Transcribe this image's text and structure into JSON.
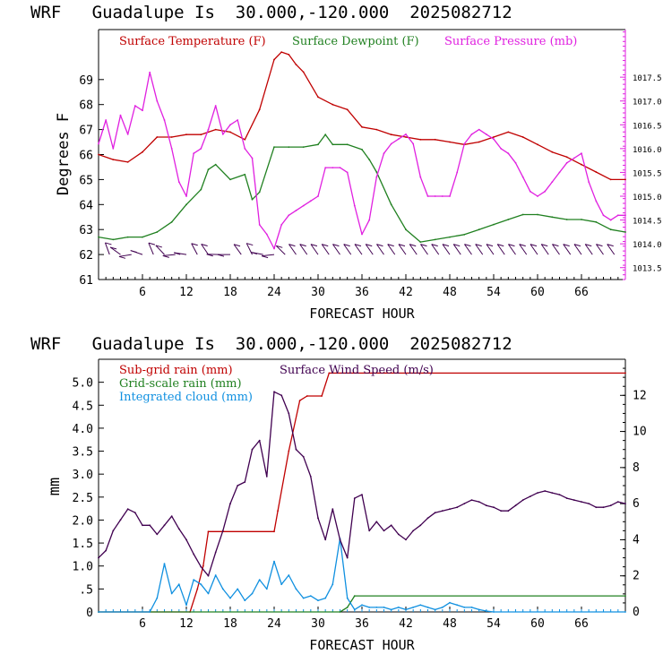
{
  "top_title": "WRF   Guadalupe Is  30.000,-120.000  2025082712",
  "bottom_title": "WRF   Guadalupe Is  30.000,-120.000  2025082712",
  "chart_data": [
    {
      "type": "line",
      "xlabel": "FORECAST HOUR",
      "ylabel": "Degrees F",
      "xlim": [
        0,
        72
      ],
      "ylim": [
        61,
        71
      ],
      "y2lim": [
        1013.25,
        1018.5
      ],
      "x_ticks": [
        "6",
        "12",
        "18",
        "24",
        "30",
        "36",
        "42",
        "48",
        "54",
        "60",
        "66"
      ],
      "y_ticks": [
        "61",
        "62",
        "63",
        "64",
        "65",
        "66",
        "67",
        "68",
        "69"
      ],
      "y2_ticks": [
        "1013.5",
        "1014.0",
        "1014.5",
        "1015.0",
        "1015.5",
        "1016.0",
        "1016.5",
        "1017.0",
        "1017.5"
      ],
      "legend_placement": "top",
      "wind_barbs": "row of wind barbs at 62°F level along the x axis",
      "series": [
        {
          "name": "Surface Temperature (F)",
          "color": "#c00000",
          "axis": "left",
          "x": [
            0,
            2,
            4,
            6,
            8,
            10,
            12,
            14,
            16,
            18,
            20,
            22,
            24,
            25,
            26,
            27,
            28,
            30,
            32,
            34,
            36,
            38,
            40,
            42,
            44,
            46,
            48,
            50,
            52,
            54,
            56,
            58,
            60,
            62,
            64,
            66,
            68,
            70,
            72
          ],
          "y": [
            66.0,
            65.8,
            65.7,
            66.1,
            66.7,
            66.7,
            66.8,
            66.8,
            67.0,
            66.9,
            66.6,
            67.8,
            69.8,
            70.1,
            70.0,
            69.6,
            69.3,
            68.3,
            68.0,
            67.8,
            67.1,
            67.0,
            66.8,
            66.7,
            66.6,
            66.6,
            66.5,
            66.4,
            66.5,
            66.7,
            66.9,
            66.7,
            66.4,
            66.1,
            65.9,
            65.6,
            65.3,
            65.0,
            65.0
          ]
        },
        {
          "name": "Surface Dewpoint (F)",
          "color": "#208020",
          "axis": "left",
          "x": [
            0,
            2,
            4,
            6,
            8,
            10,
            12,
            14,
            15,
            16,
            18,
            20,
            21,
            22,
            24,
            26,
            28,
            30,
            31,
            32,
            34,
            36,
            37,
            38,
            40,
            42,
            44,
            46,
            48,
            50,
            52,
            54,
            56,
            58,
            60,
            62,
            64,
            66,
            68,
            70,
            72
          ],
          "y": [
            62.7,
            62.6,
            62.7,
            62.7,
            62.9,
            63.3,
            64.0,
            64.6,
            65.4,
            65.6,
            65.0,
            65.2,
            64.2,
            64.5,
            66.3,
            66.3,
            66.3,
            66.4,
            66.8,
            66.4,
            66.4,
            66.2,
            65.8,
            65.3,
            64.0,
            63.0,
            62.5,
            62.6,
            62.7,
            62.8,
            63.0,
            63.2,
            63.4,
            63.6,
            63.6,
            63.5,
            63.4,
            63.4,
            63.3,
            63.0,
            62.9
          ]
        },
        {
          "name": "Surface Pressure (mb)",
          "color": "#e020e0",
          "axis": "right",
          "x": [
            0,
            1,
            2,
            3,
            4,
            5,
            6,
            7,
            8,
            9,
            10,
            11,
            12,
            13,
            14,
            15,
            16,
            17,
            18,
            19,
            20,
            21,
            22,
            23,
            24,
            25,
            26,
            27,
            28,
            29,
            30,
            31,
            32,
            33,
            34,
            35,
            36,
            37,
            38,
            39,
            40,
            41,
            42,
            43,
            44,
            45,
            46,
            47,
            48,
            49,
            50,
            51,
            52,
            53,
            54,
            55,
            56,
            57,
            58,
            59,
            60,
            61,
            62,
            63,
            64,
            65,
            66,
            67,
            68,
            69,
            70,
            71,
            72
          ],
          "y": [
            1016.1,
            1016.6,
            1016.0,
            1016.7,
            1016.3,
            1016.9,
            1016.8,
            1017.6,
            1017.0,
            1016.6,
            1016.0,
            1015.3,
            1015.0,
            1015.9,
            1016.0,
            1016.4,
            1016.9,
            1016.3,
            1016.5,
            1016.6,
            1016.0,
            1015.8,
            1014.4,
            1014.2,
            1013.9,
            1014.4,
            1014.6,
            1014.7,
            1014.8,
            1014.9,
            1015.0,
            1015.6,
            1015.6,
            1015.6,
            1015.5,
            1014.8,
            1014.2,
            1014.5,
            1015.4,
            1015.9,
            1016.1,
            1016.2,
            1016.3,
            1016.1,
            1015.4,
            1015.0,
            1015.0,
            1015.0,
            1015.0,
            1015.5,
            1016.1,
            1016.3,
            1016.4,
            1016.3,
            1016.2,
            1016.0,
            1015.9,
            1015.7,
            1015.4,
            1015.1,
            1015.0,
            1015.1,
            1015.3,
            1015.5,
            1015.7,
            1015.8,
            1015.9,
            1015.3,
            1014.9,
            1014.6,
            1014.5,
            1014.6,
            1014.6
          ]
        }
      ]
    },
    {
      "type": "line",
      "xlabel": "FORECAST HOUR",
      "ylabel": "mm",
      "xlim": [
        0,
        72
      ],
      "ylim": [
        0,
        5.5
      ],
      "y2lim": [
        0,
        14
      ],
      "x_ticks": [
        "6",
        "12",
        "18",
        "24",
        "30",
        "36",
        "42",
        "48",
        "54",
        "60",
        "66"
      ],
      "y_ticks": [
        "0",
        ".5",
        "1.0",
        "1.5",
        "2.0",
        "2.5",
        "3.0",
        "3.5",
        "4.0",
        "4.5",
        "5.0"
      ],
      "y2_ticks": [
        "0",
        "2",
        "4",
        "6",
        "8",
        "10",
        "12"
      ],
      "legend_placement": "top-left",
      "series": [
        {
          "name": "Sub-grid rain (mm)",
          "color": "#c00000",
          "axis": "left",
          "x": [
            0,
            12.5,
            13.5,
            14.3,
            15.0,
            24.0,
            24.5,
            26,
            27.5,
            28.5,
            30.5,
            31.5,
            72
          ],
          "y": [
            0,
            0,
            0.5,
            1.0,
            1.75,
            1.75,
            2.2,
            3.5,
            4.6,
            4.7,
            4.7,
            5.2,
            5.2
          ]
        },
        {
          "name": "Grid-scale rain (mm)",
          "color": "#208020",
          "axis": "left",
          "x": [
            0,
            33,
            34,
            35,
            72
          ],
          "y": [
            0,
            0,
            0.1,
            0.35,
            0.35
          ]
        },
        {
          "name": "Integrated cloud (mm)",
          "color": "#1090e0",
          "axis": "left",
          "x": [
            0,
            7,
            8,
            9,
            10,
            11,
            12,
            13,
            14,
            15,
            16,
            17,
            18,
            19,
            20,
            21,
            22,
            23,
            24,
            25,
            26,
            27,
            28,
            29,
            30,
            31,
            32,
            33,
            34,
            35,
            36,
            37,
            38,
            39,
            40,
            41,
            42,
            43,
            44,
            45,
            46,
            47,
            48,
            49,
            50,
            51,
            52,
            53,
            54,
            72
          ],
          "y": [
            0,
            0,
            0.3,
            1.05,
            0.4,
            0.6,
            0.15,
            0.7,
            0.6,
            0.4,
            0.8,
            0.5,
            0.3,
            0.5,
            0.25,
            0.4,
            0.7,
            0.5,
            1.1,
            0.6,
            0.8,
            0.5,
            0.3,
            0.35,
            0.25,
            0.3,
            0.6,
            1.6,
            0.3,
            0.05,
            0.15,
            0.1,
            0.1,
            0.1,
            0.05,
            0.1,
            0.05,
            0.1,
            0.15,
            0.1,
            0.05,
            0.1,
            0.2,
            0.15,
            0.1,
            0.1,
            0.05,
            0.02,
            0,
            0
          ]
        },
        {
          "name": "Surface Wind Speed (m/s)",
          "color": "#400050",
          "axis": "right",
          "x": [
            0,
            1,
            2,
            3,
            4,
            5,
            6,
            7,
            8,
            9,
            10,
            11,
            12,
            13,
            14,
            15,
            16,
            17,
            18,
            19,
            20,
            21,
            22,
            23,
            24,
            25,
            26,
            27,
            28,
            29,
            30,
            31,
            32,
            33,
            34,
            35,
            36,
            37,
            38,
            39,
            40,
            41,
            42,
            43,
            44,
            45,
            46,
            47,
            48,
            49,
            50,
            51,
            52,
            53,
            54,
            55,
            56,
            57,
            58,
            59,
            60,
            61,
            62,
            63,
            64,
            65,
            66,
            67,
            68,
            69,
            70,
            71,
            72
          ],
          "y": [
            3.0,
            3.4,
            4.5,
            5.1,
            5.7,
            5.5,
            4.8,
            4.8,
            4.3,
            4.8,
            5.3,
            4.6,
            4.0,
            3.2,
            2.5,
            2.0,
            3.3,
            4.5,
            6.0,
            7.0,
            7.2,
            9.0,
            9.5,
            7.5,
            12.2,
            12.0,
            11.0,
            9.0,
            8.6,
            7.5,
            5.2,
            4.0,
            5.7,
            4.0,
            3.0,
            6.3,
            6.5,
            4.5,
            5.0,
            4.5,
            4.8,
            4.3,
            4.0,
            4.5,
            4.8,
            5.2,
            5.5,
            5.6,
            5.7,
            5.8,
            6.0,
            6.2,
            6.1,
            5.9,
            5.8,
            5.6,
            5.6,
            5.9,
            6.2,
            6.4,
            6.6,
            6.7,
            6.6,
            6.5,
            6.3,
            6.2,
            6.1,
            6.0,
            5.8,
            5.8,
            5.9,
            6.1,
            6.0
          ]
        }
      ]
    }
  ]
}
